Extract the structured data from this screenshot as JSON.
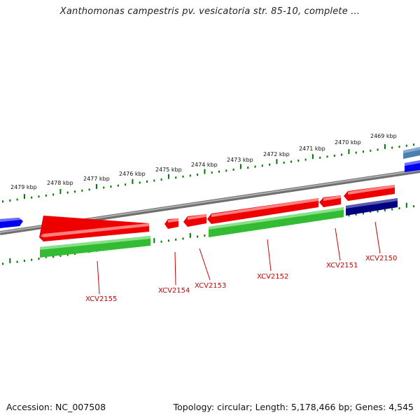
{
  "header": {
    "title": "Xanthomonas campestris pv. vesicatoria str. 85-10, complete ..."
  },
  "footer": {
    "accession": "Accession: NC_007508",
    "summary": "Topology: circular; Length: 5,178,466 bp; Genes: 4,545"
  },
  "colors": {
    "forward_strand": "#ff0000",
    "reverse_strand": "#33cc33",
    "reverse_dark": "#000080",
    "other_blue": "#0000ee",
    "steel_blue": "#4a7fb0",
    "backbone": "#888888",
    "tick": "#007700",
    "gene_label": "#cc0000"
  },
  "ruler": {
    "labels": [
      "2479 kbp",
      "2478 kbp",
      "2477 kbp",
      "2476 kbp",
      "2475 kbp",
      "2474 kbp",
      "2473 kbp",
      "2472 kbp",
      "2471 kbp",
      "2470 kbp",
      "2469 kbp"
    ]
  },
  "genes": [
    {
      "label": "XCV2155"
    },
    {
      "label": "XCV2154"
    },
    {
      "label": "XCV2153"
    },
    {
      "label": "XCV2152"
    },
    {
      "label": "XCV2151"
    },
    {
      "label": "XCV2150"
    }
  ]
}
